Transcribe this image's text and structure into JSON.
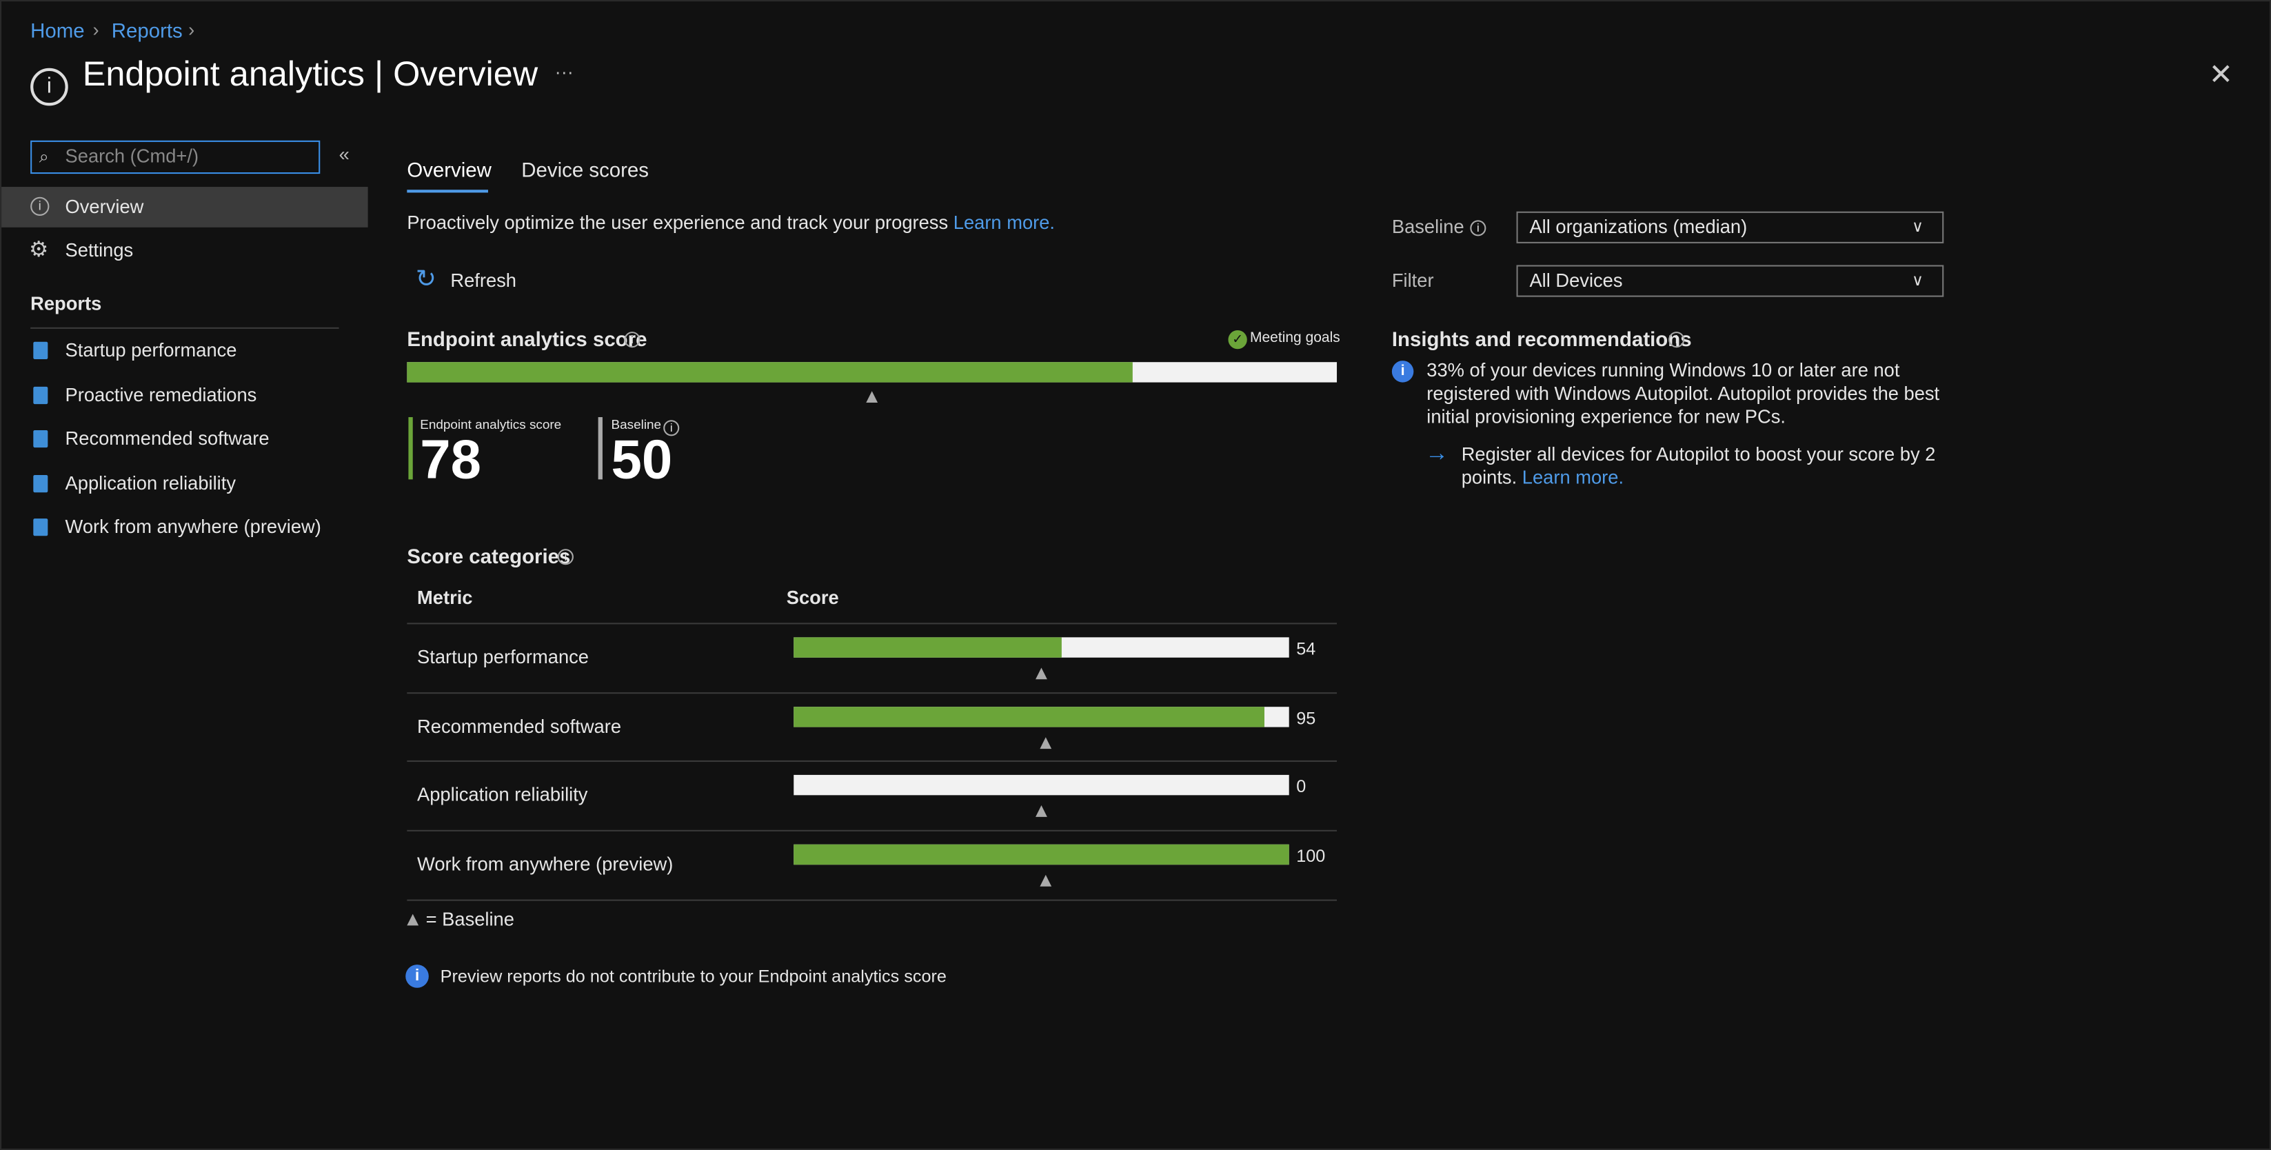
{
  "breadcrumb": [
    "Home",
    "Reports"
  ],
  "header": {
    "title": "Endpoint analytics | Overview"
  },
  "sidebar": {
    "search_placeholder": "Search (Cmd+/)",
    "items": [
      "Overview",
      "Settings"
    ],
    "section": "Reports",
    "reports": [
      "Startup performance",
      "Proactive remediations",
      "Recommended software",
      "Application reliability",
      "Work from anywhere (preview)"
    ]
  },
  "tabs": [
    "Overview",
    "Device scores"
  ],
  "intro": {
    "text": "Proactively optimize the user experience and track your progress",
    "link": "Learn more."
  },
  "refresh": "Refresh",
  "score": {
    "title": "Endpoint analytics score",
    "status": "Meeting goals",
    "score_label": "Endpoint analytics score",
    "score": 78,
    "baseline_label": "Baseline",
    "baseline": 50,
    "xlim": [
      0,
      100
    ]
  },
  "categories": {
    "title": "Score categories",
    "columns": [
      "Metric",
      "Score"
    ],
    "xlim": [
      0,
      100
    ],
    "rows": [
      {
        "metric": "Startup performance",
        "score": 54,
        "baseline": 50
      },
      {
        "metric": "Recommended software",
        "score": 95,
        "baseline": 51
      },
      {
        "metric": "Application reliability",
        "score": 0,
        "baseline": 50
      },
      {
        "metric": "Work from anywhere (preview)",
        "score": 100,
        "baseline": 51
      }
    ]
  },
  "legend": "= Baseline",
  "note": "Preview reports do not contribute to your Endpoint analytics score",
  "filters": [
    {
      "label": "Baseline",
      "value": "All organizations (median)"
    },
    {
      "label": "Filter",
      "value": "All Devices"
    }
  ],
  "insights": {
    "title": "Insights and recommendations",
    "text": "33% of your devices running Windows 10 or later are not registered with Windows Autopilot. Autopilot provides the best initial provisioning experience for new PCs.",
    "action": "Register all devices for Autopilot to boost your score by 2 points.",
    "link": "Learn more."
  }
}
